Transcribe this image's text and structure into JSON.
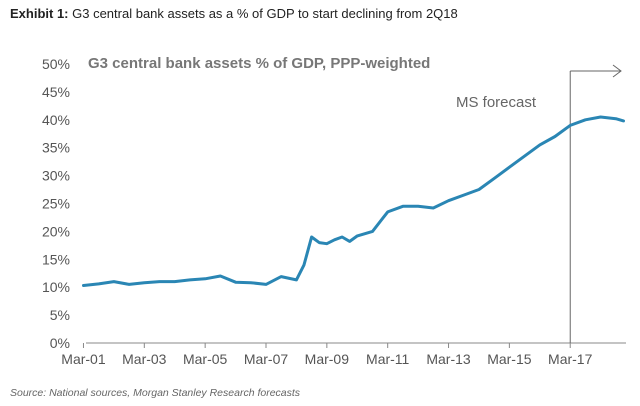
{
  "header": {
    "exhibit_label": "Exhibit 1:",
    "exhibit_text": " G3 central bank assets as a % of GDP to start declining from 2Q18"
  },
  "footer": {
    "source": "Source: National sources, Morgan Stanley Research forecasts"
  },
  "colors": {
    "line": "#2a86b4",
    "axis": "#888888",
    "annotation": "#666666"
  },
  "chart_data": {
    "type": "line",
    "title": "G3 central bank assets % of GDP, PPP-weighted",
    "xlabel": "",
    "ylabel": "",
    "ylim": [
      0,
      50
    ],
    "grid": false,
    "x_ticks": [
      "Mar-01",
      "Mar-03",
      "Mar-05",
      "Mar-07",
      "Mar-09",
      "Mar-11",
      "Mar-13",
      "Mar-15",
      "Mar-17"
    ],
    "y_ticks": [
      "0%",
      "5%",
      "10%",
      "15%",
      "20%",
      "25%",
      "30%",
      "35%",
      "40%",
      "45%",
      "50%"
    ],
    "annotation": "MS forecast",
    "forecast_start": "Mar-17",
    "series": [
      {
        "x": [
          "Mar-01",
          "Sep-01",
          "Mar-02",
          "Sep-02",
          "Mar-03",
          "Sep-03",
          "Mar-04",
          "Sep-04",
          "Mar-05",
          "Sep-05",
          "Mar-06",
          "Sep-06",
          "Mar-07",
          "Sep-07",
          "Mar-08",
          "Jun-08",
          "Sep-08",
          "Dec-08",
          "Mar-09",
          "Jun-09",
          "Sep-09",
          "Dec-09",
          "Mar-10",
          "Sep-10",
          "Mar-11",
          "Sep-11",
          "Mar-12",
          "Sep-12",
          "Mar-13",
          "Sep-13",
          "Mar-14",
          "Sep-14",
          "Mar-15",
          "Sep-15",
          "Mar-16",
          "Sep-16",
          "Mar-17",
          "Sep-17",
          "Mar-18",
          "Sep-18",
          "Dec-18"
        ],
        "values": [
          10.3,
          10.6,
          11.0,
          10.5,
          10.8,
          11.0,
          11.0,
          11.3,
          11.5,
          12.0,
          10.9,
          10.8,
          10.5,
          11.9,
          11.3,
          14.0,
          19.0,
          18.0,
          17.8,
          18.5,
          19.0,
          18.2,
          19.2,
          20.0,
          23.5,
          24.5,
          24.5,
          24.2,
          25.5,
          26.5,
          27.5,
          29.5,
          31.5,
          33.5,
          35.5,
          37.0,
          39.0,
          40.0,
          40.5,
          40.2,
          39.8
        ]
      }
    ]
  }
}
